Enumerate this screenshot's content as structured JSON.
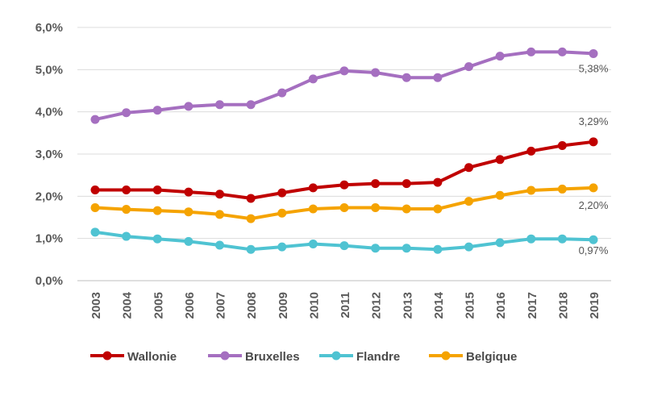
{
  "chart_data": {
    "type": "line",
    "title": "",
    "xlabel": "",
    "ylabel": "",
    "categories": [
      "2003",
      "2004",
      "2005",
      "2006",
      "2007",
      "2008",
      "2009",
      "2010",
      "2011",
      "2012",
      "2013",
      "2014",
      "2015",
      "2016",
      "2017",
      "2018",
      "2019"
    ],
    "ylim": [
      0,
      6
    ],
    "yticks": [
      "0,0%",
      "1,0%",
      "2,0%",
      "3,0%",
      "4,0%",
      "5,0%",
      "6,0%"
    ],
    "grid": true,
    "legend": "bottom",
    "series": [
      {
        "name": "Wallonie",
        "color": "#c00000",
        "values": [
          2.15,
          2.15,
          2.15,
          2.1,
          2.05,
          1.95,
          2.08,
          2.2,
          2.27,
          2.3,
          2.3,
          2.33,
          2.68,
          2.87,
          3.07,
          3.2,
          3.29
        ],
        "end_label": ""
      },
      {
        "name": "Bruxelles",
        "color": "#a56fc0",
        "values": [
          3.82,
          3.98,
          4.04,
          4.13,
          4.17,
          4.17,
          4.45,
          4.78,
          4.97,
          4.93,
          4.81,
          4.81,
          5.07,
          5.32,
          5.42,
          5.42,
          5.38
        ],
        "end_label": "5,38%"
      },
      {
        "name": "Flandre",
        "color": "#4fc3d2",
        "values": [
          1.15,
          1.05,
          0.99,
          0.93,
          0.84,
          0.74,
          0.8,
          0.87,
          0.83,
          0.77,
          0.77,
          0.74,
          0.8,
          0.9,
          0.99,
          0.99,
          0.97
        ],
        "end_label": "0,97%"
      },
      {
        "name": "Belgique",
        "color": "#f5a300",
        "values": [
          1.73,
          1.69,
          1.66,
          1.63,
          1.57,
          1.47,
          1.6,
          1.7,
          1.73,
          1.73,
          1.7,
          1.7,
          1.88,
          2.02,
          2.14,
          2.17,
          2.2
        ],
        "end_label": "2,20%"
      }
    ],
    "annotations": [
      "3,29%"
    ]
  }
}
